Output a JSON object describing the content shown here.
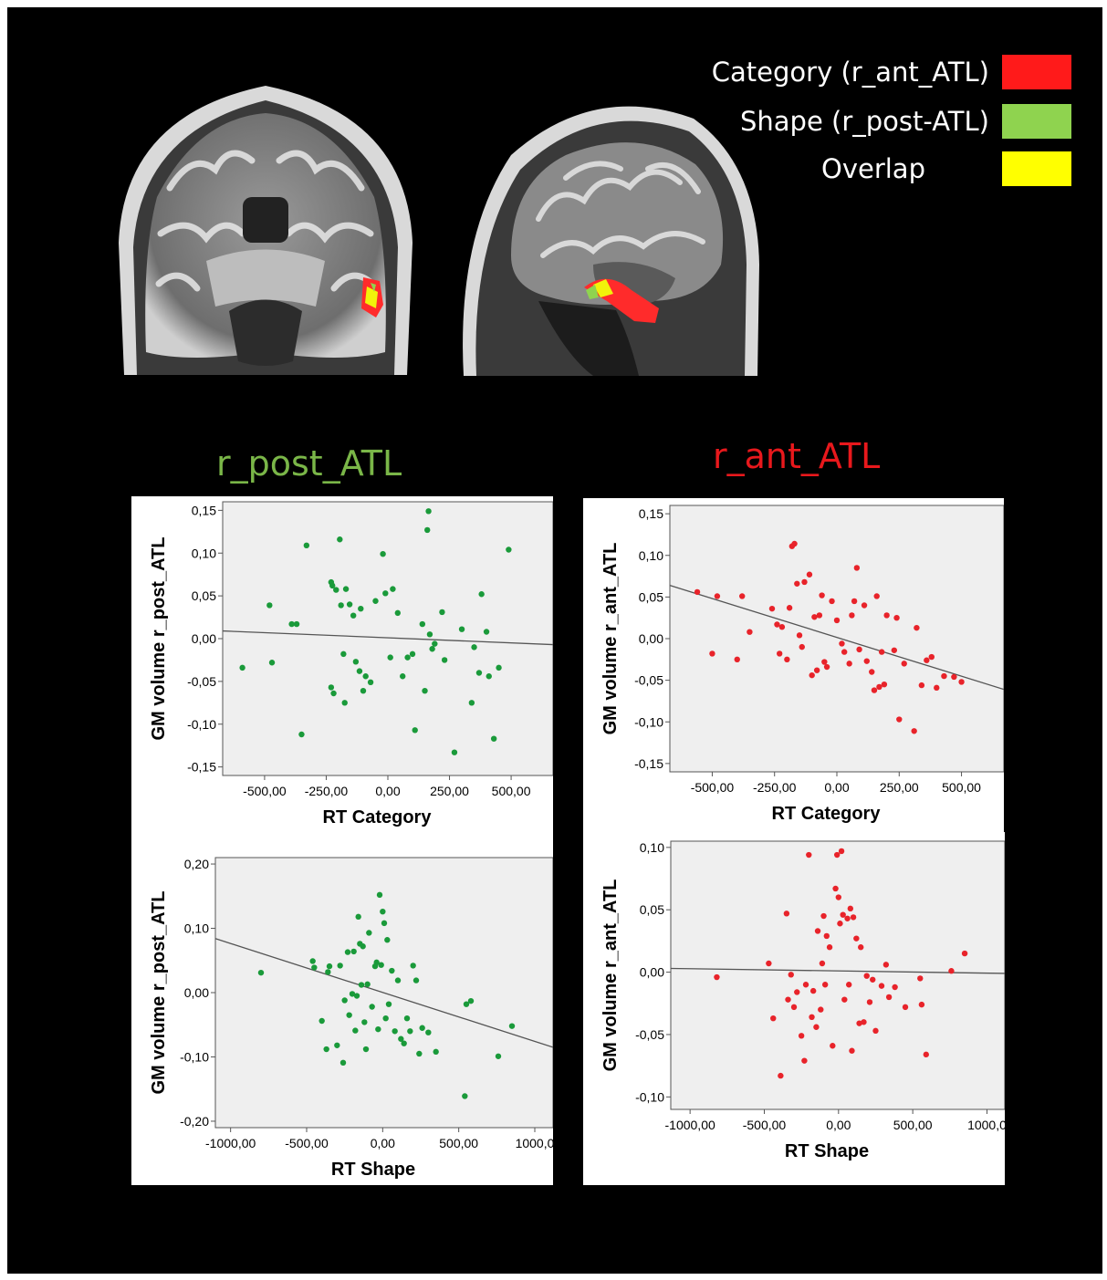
{
  "legend": [
    {
      "label": "Category (r_ant_ATL)",
      "color": "#ff1a1a"
    },
    {
      "label": "Shape (r_post-ATL)",
      "color": "#8fd34f"
    },
    {
      "label": "Overlap",
      "color": "#ffff00"
    }
  ],
  "images": [
    {
      "name": "coronal-brain-slice"
    },
    {
      "name": "sagittal-brain-slice"
    }
  ],
  "sections": [
    {
      "title": "r_post_ATL",
      "color": "#7ab648"
    },
    {
      "title": "r_ant_ATL",
      "color": "#e8181c"
    }
  ],
  "chart_data": [
    {
      "type": "scatter",
      "xlabel": "RT Category",
      "ylabel": "GM volume r_post_ATL",
      "xlim": [
        -670,
        670
      ],
      "ylim": [
        -0.16,
        0.16
      ],
      "xticks": [
        "-500,00",
        "-250,00",
        "0,00",
        "250,00",
        "500,00"
      ],
      "xtick_values": [
        -500,
        -250,
        0,
        250,
        500
      ],
      "yticks": [
        "0,15",
        "0,10",
        "0,05",
        "0,00",
        "-0,05",
        "-0,10",
        "-0,15"
      ],
      "ytick_values": [
        0.15,
        0.1,
        0.05,
        0.0,
        -0.05,
        -0.1,
        -0.15
      ],
      "color": "#1a9a3a",
      "fit_line": {
        "x": [
          -670,
          670
        ],
        "y": [
          0.009,
          -0.007
        ]
      },
      "points": [
        [
          -590,
          -0.034
        ],
        [
          -480,
          0.039
        ],
        [
          -470,
          -0.028
        ],
        [
          -390,
          0.017
        ],
        [
          -370,
          0.017
        ],
        [
          -350,
          -0.112
        ],
        [
          -330,
          0.109
        ],
        [
          -230,
          0.066
        ],
        [
          -225,
          0.062
        ],
        [
          -230,
          -0.057
        ],
        [
          -220,
          -0.064
        ],
        [
          -210,
          0.057
        ],
        [
          -195,
          0.116
        ],
        [
          -190,
          0.039
        ],
        [
          -180,
          -0.018
        ],
        [
          -175,
          -0.075
        ],
        [
          -170,
          0.058
        ],
        [
          -155,
          0.04
        ],
        [
          -140,
          0.027
        ],
        [
          -130,
          -0.027
        ],
        [
          -115,
          -0.038
        ],
        [
          -110,
          0.035
        ],
        [
          -100,
          -0.061
        ],
        [
          -90,
          -0.044
        ],
        [
          -70,
          -0.051
        ],
        [
          -50,
          0.044
        ],
        [
          -20,
          0.099
        ],
        [
          -10,
          0.053
        ],
        [
          10,
          -0.022
        ],
        [
          20,
          0.058
        ],
        [
          40,
          0.03
        ],
        [
          60,
          -0.044
        ],
        [
          80,
          -0.022
        ],
        [
          100,
          -0.018
        ],
        [
          110,
          -0.107
        ],
        [
          140,
          0.017
        ],
        [
          150,
          -0.061
        ],
        [
          160,
          0.127
        ],
        [
          165,
          0.149
        ],
        [
          170,
          0.005
        ],
        [
          180,
          -0.012
        ],
        [
          190,
          -0.006
        ],
        [
          220,
          0.031
        ],
        [
          230,
          -0.025
        ],
        [
          270,
          -0.133
        ],
        [
          300,
          0.011
        ],
        [
          340,
          -0.075
        ],
        [
          350,
          -0.01
        ],
        [
          370,
          -0.04
        ],
        [
          380,
          0.052
        ],
        [
          400,
          0.008
        ],
        [
          410,
          -0.044
        ],
        [
          430,
          -0.117
        ],
        [
          450,
          -0.034
        ],
        [
          490,
          0.104
        ]
      ]
    },
    {
      "type": "scatter",
      "xlabel": "RT Category",
      "ylabel": "GM volume r_ant_ATL",
      "xlim": [
        -670,
        670
      ],
      "ylim": [
        -0.16,
        0.16
      ],
      "xticks": [
        "-500,00",
        "-250,00",
        "0,00",
        "250,00",
        "500,00"
      ],
      "xtick_values": [
        -500,
        -250,
        0,
        250,
        500
      ],
      "yticks": [
        "0,15",
        "0,10",
        "0,05",
        "0,00",
        "-0,05",
        "-0,10",
        "-0,15"
      ],
      "ytick_values": [
        0.15,
        0.1,
        0.05,
        0.0,
        -0.05,
        -0.1,
        -0.15
      ],
      "color": "#e8232a",
      "fit_line": {
        "x": [
          -670,
          670
        ],
        "y": [
          0.064,
          -0.061
        ]
      },
      "points": [
        [
          -560,
          0.056
        ],
        [
          -500,
          -0.018
        ],
        [
          -480,
          0.051
        ],
        [
          -400,
          -0.025
        ],
        [
          -380,
          0.051
        ],
        [
          -350,
          0.008
        ],
        [
          -260,
          0.036
        ],
        [
          -240,
          0.017
        ],
        [
          -230,
          -0.018
        ],
        [
          -220,
          0.014
        ],
        [
          -200,
          -0.025
        ],
        [
          -190,
          0.037
        ],
        [
          -180,
          0.111
        ],
        [
          -170,
          0.114
        ],
        [
          -160,
          0.066
        ],
        [
          -150,
          0.004
        ],
        [
          -140,
          -0.01
        ],
        [
          -130,
          0.068
        ],
        [
          -110,
          0.077
        ],
        [
          -100,
          -0.044
        ],
        [
          -90,
          0.026
        ],
        [
          -80,
          -0.038
        ],
        [
          -70,
          0.028
        ],
        [
          -60,
          0.052
        ],
        [
          -50,
          -0.028
        ],
        [
          -40,
          -0.034
        ],
        [
          -20,
          0.045
        ],
        [
          0,
          0.022
        ],
        [
          20,
          -0.006
        ],
        [
          30,
          -0.016
        ],
        [
          50,
          -0.03
        ],
        [
          60,
          0.028
        ],
        [
          70,
          0.045
        ],
        [
          80,
          0.085
        ],
        [
          90,
          -0.013
        ],
        [
          110,
          0.04
        ],
        [
          120,
          -0.027
        ],
        [
          140,
          -0.04
        ],
        [
          150,
          -0.062
        ],
        [
          160,
          0.051
        ],
        [
          170,
          -0.058
        ],
        [
          180,
          -0.016
        ],
        [
          190,
          -0.055
        ],
        [
          200,
          0.028
        ],
        [
          230,
          -0.014
        ],
        [
          240,
          0.025
        ],
        [
          250,
          -0.097
        ],
        [
          270,
          -0.03
        ],
        [
          310,
          -0.111
        ],
        [
          320,
          0.013
        ],
        [
          340,
          -0.056
        ],
        [
          360,
          -0.026
        ],
        [
          380,
          -0.022
        ],
        [
          400,
          -0.059
        ],
        [
          430,
          -0.045
        ],
        [
          470,
          -0.046
        ],
        [
          500,
          -0.052
        ]
      ]
    },
    {
      "type": "scatter",
      "xlabel": "RT Shape",
      "ylabel": "GM volume r_post_ATL",
      "xlim": [
        -1100,
        1120
      ],
      "ylim": [
        -0.21,
        0.21
      ],
      "xticks": [
        "-1000,00",
        "-500,00",
        "0,00",
        "500,00",
        "1000,0"
      ],
      "xtick_values": [
        -1000,
        -500,
        0,
        500,
        1000
      ],
      "yticks": [
        "0,20",
        "0,10",
        "0,00",
        "-0,10",
        "-0,20"
      ],
      "ytick_values": [
        0.2,
        0.1,
        0.0,
        -0.1,
        -0.2
      ],
      "color": "#1a9a3a",
      "fit_line": {
        "x": [
          -1100,
          1120
        ],
        "y": [
          0.084,
          -0.085
        ]
      },
      "points": [
        [
          -800,
          0.031
        ],
        [
          -460,
          0.049
        ],
        [
          -450,
          0.039
        ],
        [
          -400,
          -0.044
        ],
        [
          -370,
          -0.088
        ],
        [
          -360,
          0.032
        ],
        [
          -350,
          0.041
        ],
        [
          -300,
          -0.082
        ],
        [
          -280,
          0.042
        ],
        [
          -260,
          -0.109
        ],
        [
          -250,
          -0.012
        ],
        [
          -230,
          0.063
        ],
        [
          -220,
          -0.035
        ],
        [
          -200,
          -0.002
        ],
        [
          -190,
          0.064
        ],
        [
          -180,
          -0.059
        ],
        [
          -170,
          -0.005
        ],
        [
          -160,
          0.118
        ],
        [
          -150,
          0.076
        ],
        [
          -140,
          0.012
        ],
        [
          -130,
          0.072
        ],
        [
          -120,
          -0.046
        ],
        [
          -110,
          -0.088
        ],
        [
          -100,
          0.013
        ],
        [
          -90,
          0.093
        ],
        [
          -70,
          -0.022
        ],
        [
          -50,
          0.041
        ],
        [
          -40,
          0.047
        ],
        [
          -30,
          -0.057
        ],
        [
          -20,
          0.152
        ],
        [
          -10,
          0.043
        ],
        [
          0,
          0.126
        ],
        [
          10,
          0.108
        ],
        [
          20,
          -0.04
        ],
        [
          30,
          0.082
        ],
        [
          40,
          -0.018
        ],
        [
          60,
          0.034
        ],
        [
          80,
          -0.06
        ],
        [
          100,
          0.019
        ],
        [
          120,
          -0.072
        ],
        [
          140,
          -0.079
        ],
        [
          160,
          -0.04
        ],
        [
          180,
          -0.06
        ],
        [
          200,
          0.042
        ],
        [
          220,
          0.019
        ],
        [
          240,
          -0.095
        ],
        [
          260,
          -0.055
        ],
        [
          300,
          -0.062
        ],
        [
          350,
          -0.092
        ],
        [
          540,
          -0.161
        ],
        [
          550,
          -0.018
        ],
        [
          580,
          -0.013
        ],
        [
          760,
          -0.099
        ],
        [
          850,
          -0.052
        ]
      ]
    },
    {
      "type": "scatter",
      "xlabel": "RT Shape",
      "ylabel": "GM volume r_ant_ATL",
      "xlim": [
        -1130,
        1120
      ],
      "ylim": [
        -0.11,
        0.105
      ],
      "xticks": [
        "-1000,00",
        "-500,00",
        "0,00",
        "500,00",
        "1000,0"
      ],
      "xtick_values": [
        -1000,
        -500,
        0,
        500,
        1000
      ],
      "yticks": [
        "0,10",
        "0,05",
        "0,00",
        "-0,05",
        "-0,10"
      ],
      "ytick_values": [
        0.1,
        0.05,
        0.0,
        -0.05,
        -0.1
      ],
      "color": "#e8232a",
      "fit_line": {
        "x": [
          -1130,
          1120
        ],
        "y": [
          0.003,
          -0.001
        ]
      },
      "points": [
        [
          -820,
          -0.004
        ],
        [
          -470,
          0.007
        ],
        [
          -440,
          -0.037
        ],
        [
          -390,
          -0.083
        ],
        [
          -350,
          0.047
        ],
        [
          -340,
          -0.022
        ],
        [
          -320,
          -0.002
        ],
        [
          -300,
          -0.028
        ],
        [
          -280,
          -0.016
        ],
        [
          -250,
          -0.051
        ],
        [
          -230,
          -0.071
        ],
        [
          -220,
          -0.01
        ],
        [
          -200,
          0.094
        ],
        [
          -180,
          -0.036
        ],
        [
          -170,
          -0.015
        ],
        [
          -150,
          -0.044
        ],
        [
          -140,
          0.033
        ],
        [
          -120,
          -0.03
        ],
        [
          -110,
          0.007
        ],
        [
          -100,
          0.045
        ],
        [
          -90,
          -0.01
        ],
        [
          -80,
          0.029
        ],
        [
          -60,
          0.02
        ],
        [
          -40,
          -0.059
        ],
        [
          -20,
          0.067
        ],
        [
          -10,
          0.094
        ],
        [
          0,
          0.06
        ],
        [
          10,
          0.039
        ],
        [
          20,
          0.097
        ],
        [
          30,
          0.046
        ],
        [
          40,
          -0.022
        ],
        [
          60,
          0.043
        ],
        [
          70,
          -0.01
        ],
        [
          80,
          0.051
        ],
        [
          90,
          -0.063
        ],
        [
          100,
          0.044
        ],
        [
          120,
          0.027
        ],
        [
          140,
          -0.041
        ],
        [
          150,
          0.02
        ],
        [
          170,
          -0.04
        ],
        [
          190,
          -0.003
        ],
        [
          210,
          -0.024
        ],
        [
          230,
          -0.006
        ],
        [
          250,
          -0.047
        ],
        [
          290,
          -0.011
        ],
        [
          320,
          0.006
        ],
        [
          340,
          -0.02
        ],
        [
          380,
          -0.012
        ],
        [
          450,
          -0.028
        ],
        [
          550,
          -0.005
        ],
        [
          560,
          -0.026
        ],
        [
          590,
          -0.066
        ],
        [
          760,
          0.001
        ],
        [
          850,
          0.015
        ]
      ]
    }
  ]
}
